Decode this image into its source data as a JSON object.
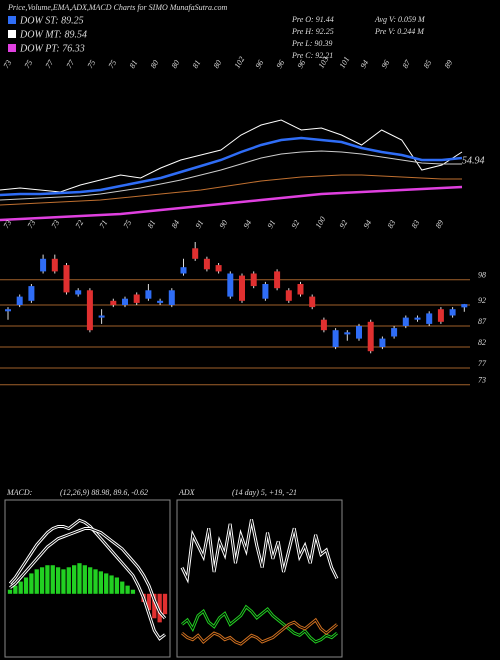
{
  "header": {
    "title": "Price,Volume,EMA,ADX,MACD Charts for SIMO MunafaSutra.com",
    "legend": [
      {
        "name": "DOW ST: 89.25",
        "color": "#2f6df6"
      },
      {
        "name": "DOW MT: 89.54",
        "color": "#ffffff"
      },
      {
        "name": "DOW PT: 76.33",
        "color": "#e040e0"
      }
    ],
    "stats": [
      "Pre  O: 91.44",
      "Pre  H: 92.25",
      "Pre  L: 90.39",
      "Pre  C: 92.21",
      "Avg V: 0.059 M",
      "Pre  V: 0.244  M"
    ]
  },
  "chart_data": [
    {
      "type": "line",
      "annotation": "54.94",
      "ylim": [
        0,
        170
      ],
      "top_labels": [
        "73",
        "75",
        "77",
        "77",
        "75",
        "75",
        "81",
        "80",
        "80",
        "81",
        "80",
        "102",
        "96",
        "96",
        "96",
        "103",
        "101",
        "94",
        "96",
        "87",
        "85",
        "89"
      ],
      "bottom_labels": [
        "73",
        "73",
        "73",
        "72",
        "71",
        "75",
        "81",
        "84",
        "91",
        "90",
        "94",
        "91",
        "92",
        "100",
        "92",
        "94",
        "83",
        "83",
        "89"
      ],
      "series": [
        {
          "color": "#ffffff",
          "values": [
            40,
            42,
            40,
            38,
            45,
            50,
            55,
            52,
            62,
            70,
            75,
            80,
            95,
            105,
            110,
            100,
            102,
            95,
            85,
            100,
            90,
            60,
            65,
            78
          ]
        },
        {
          "color": "#2f6df6",
          "values": [
            35,
            36,
            36,
            37,
            38,
            40,
            44,
            48,
            52,
            58,
            64,
            70,
            78,
            85,
            90,
            92,
            90,
            88,
            82,
            78,
            75,
            70,
            70,
            72
          ]
        },
        {
          "color": "#cccccc",
          "values": [
            30,
            31,
            32,
            33,
            34,
            36,
            39,
            42,
            46,
            50,
            55,
            60,
            66,
            72,
            76,
            78,
            79,
            78,
            76,
            73,
            70,
            67,
            66,
            66
          ]
        },
        {
          "color": "#c07030",
          "values": [
            25,
            26,
            27,
            28,
            29,
            30,
            32,
            34,
            36,
            38,
            40,
            43,
            46,
            49,
            51,
            53,
            54,
            55,
            55,
            54,
            53,
            52,
            51,
            51
          ]
        },
        {
          "color": "#e040e0",
          "values": [
            10,
            11,
            12,
            13,
            14,
            15,
            16,
            18,
            20,
            22,
            24,
            26,
            28,
            30,
            32,
            34,
            36,
            37,
            38,
            39,
            40,
            41,
            42,
            43
          ]
        }
      ]
    },
    {
      "type": "candlestick",
      "ylim": [
        72,
        108
      ],
      "yticks": [
        98,
        92,
        87,
        82,
        77,
        73
      ],
      "up_color": "#2f6df6",
      "down_color": "#e03030",
      "line_color": "#a0602a",
      "open": [
        90.5,
        92,
        93,
        100,
        103,
        101.5,
        94.5,
        95.5,
        89,
        93,
        92,
        94.5,
        93.5,
        92.5,
        92,
        99.5,
        105.5,
        103,
        101.5,
        94,
        99,
        99.5,
        93.5,
        100,
        95.5,
        97,
        94,
        88.5,
        82,
        85,
        84,
        88,
        82,
        84.5,
        87,
        88.5,
        87.5,
        91,
        89.5,
        91.44
      ],
      "high": [
        91.5,
        94.5,
        97,
        104,
        104,
        102,
        96,
        96,
        91,
        93.5,
        94,
        95,
        97,
        93.5,
        96,
        103,
        107,
        103.5,
        102,
        100,
        99.5,
        100,
        97.5,
        100.5,
        96,
        97.5,
        94.5,
        89,
        86.5,
        86,
        87.5,
        88.5,
        84.5,
        87,
        89.5,
        89.5,
        90.5,
        91.5,
        91.5,
        92.25
      ],
      "low": [
        88.5,
        91.5,
        92.5,
        99.5,
        99.5,
        94.5,
        94,
        85.5,
        87.5,
        91.5,
        91.5,
        92,
        93,
        92,
        91.5,
        99,
        102.5,
        100,
        99.5,
        93.5,
        92.5,
        96,
        93,
        95.5,
        92.5,
        94,
        91,
        85.5,
        81.5,
        83.5,
        83.5,
        80.5,
        81.5,
        84,
        86.5,
        88,
        87,
        87.5,
        89,
        90.39
      ],
      "close": [
        91,
        94,
        96.5,
        103,
        100,
        95,
        95.5,
        86,
        89.5,
        92,
        93.5,
        92.5,
        95.5,
        93,
        95.5,
        101,
        103,
        100.5,
        100,
        99.5,
        93,
        96.5,
        97,
        96,
        93,
        94.5,
        91.5,
        86,
        86,
        85.5,
        87,
        81,
        84,
        86.5,
        89,
        89,
        90,
        88,
        91,
        92.21
      ]
    },
    {
      "type": "macd",
      "title": "MACD:",
      "subtitle": "(12,26,9) 88.98, 89.6, -0.62",
      "ylim": [
        -30,
        45
      ],
      "series": [
        {
          "kind": "bar",
          "up_color": "#22d022",
          "down_color": "#e03030",
          "values": [
            2,
            4,
            6,
            8,
            10,
            12,
            13,
            14,
            14,
            13,
            12,
            13,
            14,
            15,
            14,
            13,
            12,
            11,
            10,
            9,
            8,
            6,
            4,
            2,
            0,
            -4,
            -8,
            -12,
            -14,
            -10
          ]
        },
        {
          "kind": "line",
          "color": "#ffffff",
          "values": [
            5,
            8,
            12,
            16,
            20,
            24,
            27,
            30,
            32,
            33,
            33,
            32,
            34,
            36,
            35,
            33,
            30,
            27,
            24,
            21,
            18,
            15,
            12,
            9,
            4,
            -2,
            -10,
            -18,
            -22,
            -20
          ]
        },
        {
          "kind": "line",
          "color": "#ffffff",
          "values": [
            3,
            5,
            8,
            11,
            14,
            17,
            20,
            23,
            25,
            27,
            28,
            29,
            30,
            31,
            32,
            32,
            31,
            30,
            28,
            26,
            24,
            22,
            19,
            16,
            13,
            9,
            4,
            -3,
            -9,
            -12
          ]
        }
      ]
    },
    {
      "type": "adx",
      "title": "ADX",
      "subtitle": "(14 day) 5, +19, -21",
      "ylim": [
        0,
        70
      ],
      "series": [
        {
          "kind": "line",
          "color": "#ffffff",
          "values": [
            40,
            35,
            55,
            50,
            45,
            58,
            38,
            52,
            46,
            60,
            42,
            55,
            48,
            62,
            50,
            40,
            56,
            44,
            52,
            38,
            48,
            58,
            45,
            50,
            42,
            55,
            46,
            48,
            40,
            35
          ]
        },
        {
          "kind": "line",
          "color": "#22d022",
          "values": [
            14,
            16,
            12,
            18,
            20,
            15,
            13,
            17,
            19,
            14,
            16,
            18,
            22,
            20,
            17,
            19,
            21,
            18,
            16,
            14,
            12,
            10,
            9,
            11,
            8,
            6,
            7,
            9,
            8,
            10
          ]
        },
        {
          "kind": "line",
          "color": "#d07020",
          "values": [
            10,
            8,
            7,
            9,
            6,
            8,
            10,
            9,
            7,
            8,
            6,
            5,
            7,
            9,
            8,
            6,
            7,
            8,
            10,
            12,
            14,
            15,
            13,
            12,
            14,
            16,
            12,
            10,
            12,
            14
          ]
        }
      ]
    }
  ]
}
